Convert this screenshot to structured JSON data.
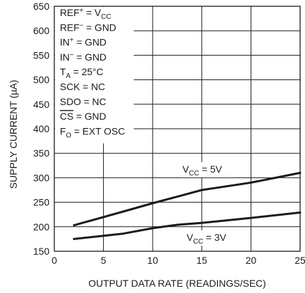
{
  "chart_data": {
    "type": "line",
    "title": "",
    "xlabel": "OUTPUT DATA RATE (READINGS/SEC)",
    "ylabel": "SUPPLY CURRENT (µA)",
    "xlim": [
      0,
      25
    ],
    "ylim": [
      150,
      650
    ],
    "x_ticks": [
      "0",
      "5",
      "10",
      "15",
      "20",
      "25"
    ],
    "y_ticks": [
      "150",
      "200",
      "250",
      "300",
      "350",
      "400",
      "450",
      "500",
      "550",
      "600",
      "650"
    ],
    "grid": true,
    "series": [
      {
        "name": "VCC = 5V",
        "label_main": "V",
        "label_sub": "CC",
        "label_rest": " = 5V",
        "x": [
          2,
          7,
          10,
          13,
          15,
          17,
          20,
          25
        ],
        "y": [
          203,
          231,
          248,
          264,
          275,
          281,
          290,
          310
        ]
      },
      {
        "name": "VCC = 3V",
        "label_main": "V",
        "label_sub": "CC",
        "label_rest": " = 3V",
        "x": [
          2,
          7,
          10,
          12.5,
          15,
          20,
          25
        ],
        "y": [
          175,
          186,
          197,
          204,
          208,
          218,
          229
        ]
      }
    ],
    "conditions": [
      {
        "main": "REF",
        "sup": "+",
        "rest": " = V",
        "sub": "CC"
      },
      {
        "main": "REF",
        "sup": "−",
        "rest": " = GND"
      },
      {
        "main": "IN",
        "sup": "+",
        "rest": " = GND"
      },
      {
        "main": "IN",
        "sup": "−",
        "rest": " = GND"
      },
      {
        "main": "T",
        "sub": "A",
        "rest": " = 25°C"
      },
      {
        "main": "SCK = NC"
      },
      {
        "main": "SDO = NC"
      },
      {
        "main": "CS",
        "overline": true,
        "rest": " = GND"
      },
      {
        "main": "F",
        "sub": "O",
        "rest": " = EXT OSC"
      }
    ]
  }
}
